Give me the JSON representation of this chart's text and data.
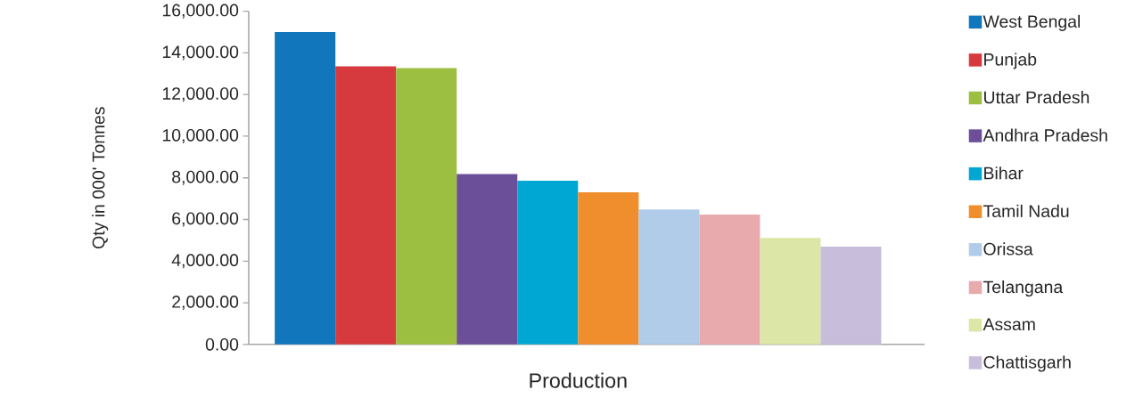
{
  "chart_data": {
    "type": "bar",
    "ylabel": "Qty in 000' Tonnes",
    "categories": [
      "Production"
    ],
    "series": [
      {
        "name": "West Bengal",
        "color": "#1176bc",
        "values": [
          15000
        ]
      },
      {
        "name": "Punjab",
        "color": "#d63a3e",
        "values": [
          13360
        ]
      },
      {
        "name": "Uttar Pradesh",
        "color": "#9dbf41",
        "values": [
          13270
        ]
      },
      {
        "name": "Andhra Pradesh",
        "color": "#6b4f98",
        "values": [
          8180
        ]
      },
      {
        "name": "Bihar",
        "color": "#00a7d3",
        "values": [
          7860
        ]
      },
      {
        "name": "Tamil Nadu",
        "color": "#f08d2c",
        "values": [
          7300
        ]
      },
      {
        "name": "Orissa",
        "color": "#b0cce8",
        "values": [
          6480
        ]
      },
      {
        "name": "Telangana",
        "color": "#e9aaad",
        "values": [
          6230
        ]
      },
      {
        "name": "Assam",
        "color": "#dce6a6",
        "values": [
          5110
        ]
      },
      {
        "name": "Chattisgarh",
        "color": "#c8bedc",
        "values": [
          4700
        ]
      }
    ],
    "ylim": [
      0,
      16000
    ],
    "yticks": [
      {
        "value": 0,
        "label": "0.00"
      },
      {
        "value": 2000,
        "label": "2,000.00"
      },
      {
        "value": 4000,
        "label": "4,000.00"
      },
      {
        "value": 6000,
        "label": "6,000.00"
      },
      {
        "value": 8000,
        "label": "8,000.00"
      },
      {
        "value": 10000,
        "label": "10,000.00"
      },
      {
        "value": 12000,
        "label": "12,000.00"
      },
      {
        "value": 14000,
        "label": "14,000.00"
      },
      {
        "value": 16000,
        "label": "16,000.00"
      }
    ],
    "legend": "right"
  }
}
